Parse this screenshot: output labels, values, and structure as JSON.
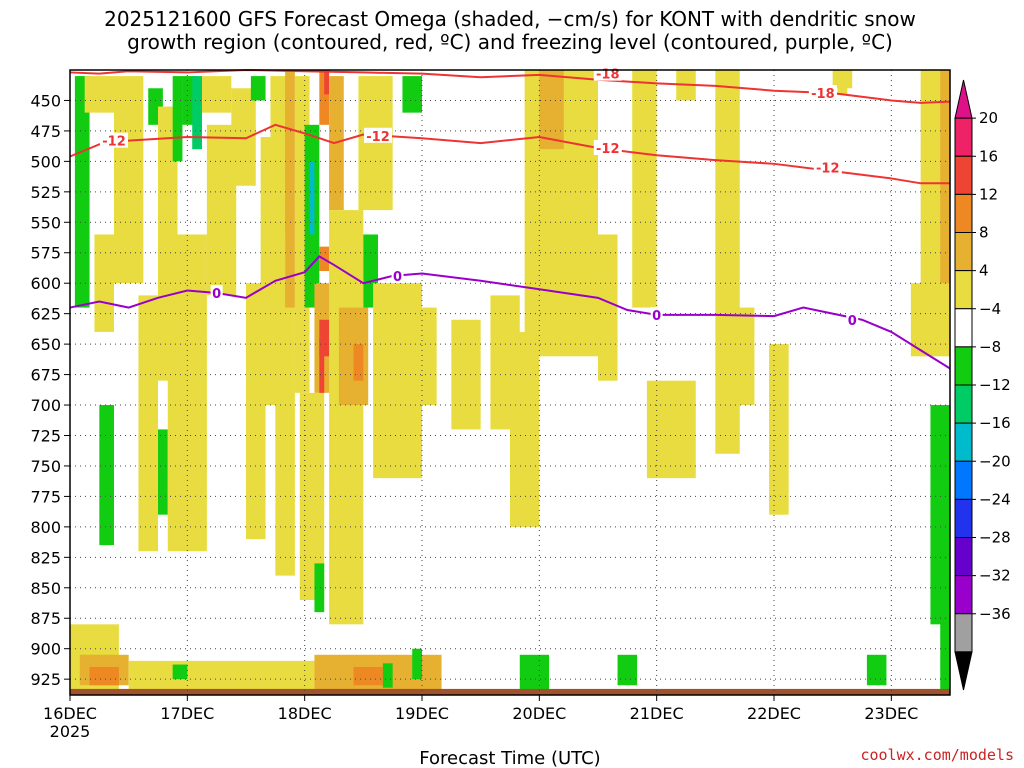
{
  "chart_data": {
    "type": "heatmap",
    "title_lines": [
      "2025121600 GFS Forecast Omega (shaded, −cm/s) for KONT with dendritic snow",
      "growth region (contoured, red, ºC) and freezing level (contoured, purple, ºC)"
    ],
    "xlabel": "Forecast Time (UTC)",
    "ylabel": "",
    "x_ticks": [
      "16DEC",
      "17DEC",
      "18DEC",
      "19DEC",
      "20DEC",
      "21DEC",
      "22DEC",
      "23DEC"
    ],
    "x_tick_values": [
      0,
      24,
      48,
      72,
      96,
      120,
      144,
      168
    ],
    "x_year_label": "2025",
    "xlim": [
      0,
      180
    ],
    "y_ticks": [
      450,
      475,
      500,
      525,
      550,
      575,
      600,
      625,
      650,
      675,
      700,
      725,
      750,
      775,
      800,
      825,
      850,
      875,
      900,
      925
    ],
    "ylim": [
      938,
      425
    ],
    "grid": true,
    "colorbar": {
      "levels": [
        -36,
        -32,
        -28,
        -24,
        -20,
        -16,
        -12,
        -8,
        -4,
        4,
        8,
        12,
        16,
        20
      ],
      "labels": [
        "20",
        "16",
        "12",
        "8",
        "4",
        "−4",
        "−8",
        "−12",
        "−16",
        "−20",
        "−24",
        "−28",
        "−32",
        "−36"
      ],
      "colors": [
        "#000000",
        "#a0a0a0",
        "#9900cc",
        "#6600cc",
        "#2233ee",
        "#0077ff",
        "#00bbcc",
        "#00cc66",
        "#11cc11",
        "#ffffff",
        "#e8dc40",
        "#e6b030",
        "#ee8822",
        "#ee4433",
        "#ee2266",
        "#dd1188"
      ],
      "position": "right"
    },
    "contours": [
      {
        "label": "-18",
        "color": "#ee3333",
        "x": [
          0,
          6,
          12,
          24,
          36,
          48,
          60,
          72,
          84,
          96,
          108,
          120,
          132,
          144,
          156,
          168,
          174,
          180
        ],
        "y": [
          427,
          428,
          426,
          427,
          425,
          426,
          427,
          428,
          431,
          429,
          433,
          436,
          438,
          442,
          444,
          450,
          452,
          451
        ]
      },
      {
        "label": "-12",
        "color": "#ee3333",
        "x": [
          0,
          6,
          12,
          24,
          36,
          42,
          48,
          54,
          60,
          72,
          84,
          96,
          108,
          120,
          132,
          144,
          156,
          168,
          174,
          180
        ],
        "y": [
          496,
          486,
          483,
          480,
          481,
          470,
          477,
          485,
          478,
          481,
          485,
          480,
          489,
          495,
          499,
          502,
          508,
          514,
          518,
          518
        ]
      },
      {
        "label": "0",
        "color": "#9900cc",
        "x": [
          0,
          6,
          12,
          18,
          24,
          30,
          36,
          42,
          48,
          51,
          54,
          60,
          66,
          72,
          84,
          96,
          108,
          114,
          120,
          132,
          144,
          150,
          156,
          162,
          168,
          174,
          180
        ],
        "y": [
          620,
          615,
          620,
          612,
          606,
          608,
          612,
          598,
          591,
          578,
          585,
          600,
          594,
          592,
          598,
          605,
          612,
          622,
          626,
          626,
          627,
          620,
          625,
          630,
          640,
          655,
          670
        ]
      }
    ],
    "contour_label_points": [
      {
        "label": "-18",
        "x": 110,
        "y": 428
      },
      {
        "label": "-18",
        "x": 154,
        "y": 444
      },
      {
        "label": "-12",
        "x": 9,
        "y": 483
      },
      {
        "label": "-12",
        "x": 63,
        "y": 479
      },
      {
        "label": "-12",
        "x": 110,
        "y": 489
      },
      {
        "label": "-12",
        "x": 155,
        "y": 505
      },
      {
        "label": "0",
        "x": 30,
        "y": 608
      },
      {
        "label": "0",
        "x": 67,
        "y": 594
      },
      {
        "label": "0",
        "x": 120,
        "y": 626
      },
      {
        "label": "0",
        "x": 160,
        "y": 630
      }
    ],
    "omega_cells": [
      {
        "x": [
          0,
          180
        ],
        "p": [
          425,
          938
        ],
        "v": 0
      },
      {
        "x": [
          1,
          4
        ],
        "p": [
          430,
          620
        ],
        "v": -6
      },
      {
        "x": [
          3,
          9
        ],
        "p": [
          430,
          460
        ],
        "v": 6
      },
      {
        "x": [
          5,
          9
        ],
        "p": [
          560,
          640
        ],
        "v": 5
      },
      {
        "x": [
          6,
          9
        ],
        "p": [
          700,
          815
        ],
        "v": -6
      },
      {
        "x": [
          9,
          15
        ],
        "p": [
          430,
          600
        ],
        "v": 5
      },
      {
        "x": [
          14,
          18
        ],
        "p": [
          610,
          820
        ],
        "v": 5
      },
      {
        "x": [
          16,
          19
        ],
        "p": [
          440,
          470
        ],
        "v": -6
      },
      {
        "x": [
          18,
          22
        ],
        "p": [
          455,
          680
        ],
        "v": 5
      },
      {
        "x": [
          18,
          20
        ],
        "p": [
          720,
          790
        ],
        "v": -6
      },
      {
        "x": [
          20,
          28
        ],
        "p": [
          560,
          820
        ],
        "v": 5
      },
      {
        "x": [
          21,
          23
        ],
        "p": [
          430,
          500
        ],
        "v": -6
      },
      {
        "x": [
          23,
          26
        ],
        "p": [
          430,
          470
        ],
        "v": -6
      },
      {
        "x": [
          25,
          27
        ],
        "p": [
          430,
          490
        ],
        "v": -10
      },
      {
        "x": [
          27,
          33
        ],
        "p": [
          430,
          460
        ],
        "v": 5
      },
      {
        "x": [
          28,
          34
        ],
        "p": [
          470,
          610
        ],
        "v": 5
      },
      {
        "x": [
          33,
          38
        ],
        "p": [
          440,
          520
        ],
        "v": 5
      },
      {
        "x": [
          36,
          40
        ],
        "p": [
          600,
          810
        ],
        "v": 5
      },
      {
        "x": [
          37,
          40
        ],
        "p": [
          430,
          450
        ],
        "v": -6
      },
      {
        "x": [
          39,
          44
        ],
        "p": [
          480,
          700
        ],
        "v": 5
      },
      {
        "x": [
          41,
          45
        ],
        "p": [
          430,
          560
        ],
        "v": 5
      },
      {
        "x": [
          42,
          46
        ],
        "p": [
          600,
          840
        ],
        "v": 5
      },
      {
        "x": [
          44,
          46
        ],
        "p": [
          425,
          620
        ],
        "v": 9
      },
      {
        "x": [
          46,
          49
        ],
        "p": [
          430,
          690
        ],
        "v": 6
      },
      {
        "x": [
          47,
          52
        ],
        "p": [
          690,
          860
        ],
        "v": 5
      },
      {
        "x": [
          48,
          51
        ],
        "p": [
          470,
          620
        ],
        "v": -6
      },
      {
        "x": [
          49,
          50
        ],
        "p": [
          500,
          560
        ],
        "v": -14
      },
      {
        "x": [
          51,
          53
        ],
        "p": [
          425,
          470
        ],
        "v": 14
      },
      {
        "x": [
          52,
          53
        ],
        "p": [
          425,
          445
        ],
        "v": 18
      },
      {
        "x": [
          51,
          53
        ],
        "p": [
          570,
          590
        ],
        "v": 13
      },
      {
        "x": [
          50,
          55
        ],
        "p": [
          600,
          690
        ],
        "v": 10
      },
      {
        "x": [
          51,
          53
        ],
        "p": [
          630,
          660
        ],
        "v": 16
      },
      {
        "x": [
          51,
          52
        ],
        "p": [
          645,
          690
        ],
        "v": 19
      },
      {
        "x": [
          50,
          52
        ],
        "p": [
          830,
          870
        ],
        "v": -6
      },
      {
        "x": [
          53,
          56
        ],
        "p": [
          430,
          540
        ],
        "v": 10
      },
      {
        "x": [
          53,
          60
        ],
        "p": [
          540,
          880
        ],
        "v": 5
      },
      {
        "x": [
          55,
          61
        ],
        "p": [
          620,
          700
        ],
        "v": 10
      },
      {
        "x": [
          58,
          60
        ],
        "p": [
          650,
          680
        ],
        "v": 15
      },
      {
        "x": [
          60,
          63
        ],
        "p": [
          560,
          620
        ],
        "v": -6
      },
      {
        "x": [
          59,
          66
        ],
        "p": [
          430,
          540
        ],
        "v": 5
      },
      {
        "x": [
          62,
          72
        ],
        "p": [
          600,
          760
        ],
        "v": 5
      },
      {
        "x": [
          68,
          72
        ],
        "p": [
          430,
          460
        ],
        "v": -6
      },
      {
        "x": [
          70,
          75
        ],
        "p": [
          620,
          700
        ],
        "v": 5
      },
      {
        "x": [
          78,
          84
        ],
        "p": [
          630,
          720
        ],
        "v": 5
      },
      {
        "x": [
          86,
          92
        ],
        "p": [
          610,
          720
        ],
        "v": 5
      },
      {
        "x": [
          90,
          96
        ],
        "p": [
          640,
          800
        ],
        "v": 5
      },
      {
        "x": [
          93,
          108
        ],
        "p": [
          425,
          660
        ],
        "v": 5
      },
      {
        "x": [
          96,
          101
        ],
        "p": [
          425,
          490
        ],
        "v": 9
      },
      {
        "x": [
          108,
          112
        ],
        "p": [
          560,
          680
        ],
        "v": 5
      },
      {
        "x": [
          115,
          120
        ],
        "p": [
          425,
          620
        ],
        "v": 5
      },
      {
        "x": [
          118,
          128
        ],
        "p": [
          680,
          760
        ],
        "v": 5
      },
      {
        "x": [
          124,
          128
        ],
        "p": [
          425,
          450
        ],
        "v": 5
      },
      {
        "x": [
          132,
          137
        ],
        "p": [
          425,
          740
        ],
        "v": 5
      },
      {
        "x": [
          135,
          140
        ],
        "p": [
          620,
          700
        ],
        "v": 5
      },
      {
        "x": [
          143,
          147
        ],
        "p": [
          650,
          790
        ],
        "v": 5
      },
      {
        "x": [
          156,
          160
        ],
        "p": [
          425,
          440
        ],
        "v": 5
      },
      {
        "x": [
          157,
          159
        ],
        "p": [
          425,
          445
        ],
        "v": 5
      },
      {
        "x": [
          172,
          175
        ],
        "p": [
          600,
          660
        ],
        "v": 5
      },
      {
        "x": [
          174,
          180
        ],
        "p": [
          425,
          660
        ],
        "v": 5
      },
      {
        "x": [
          178,
          180
        ],
        "p": [
          425,
          600
        ],
        "v": 10
      },
      {
        "x": [
          176,
          180
        ],
        "p": [
          700,
          880
        ],
        "v": -6
      },
      {
        "x": [
          178,
          180
        ],
        "p": [
          840,
          940
        ],
        "v": -6
      },
      {
        "x": [
          0,
          10
        ],
        "p": [
          880,
          938
        ],
        "v": 5
      },
      {
        "x": [
          2,
          12
        ],
        "p": [
          905,
          930
        ],
        "v": 9
      },
      {
        "x": [
          4,
          10
        ],
        "p": [
          915,
          930
        ],
        "v": 13
      },
      {
        "x": [
          12,
          50
        ],
        "p": [
          910,
          938
        ],
        "v": 5
      },
      {
        "x": [
          21,
          24
        ],
        "p": [
          913,
          925
        ],
        "v": -6
      },
      {
        "x": [
          50,
          76
        ],
        "p": [
          905,
          935
        ],
        "v": 9
      },
      {
        "x": [
          58,
          64
        ],
        "p": [
          915,
          930
        ],
        "v": 14
      },
      {
        "x": [
          64,
          66
        ],
        "p": [
          912,
          932
        ],
        "v": -6
      },
      {
        "x": [
          70,
          72
        ],
        "p": [
          900,
          925
        ],
        "v": -6
      },
      {
        "x": [
          92,
          98
        ],
        "p": [
          905,
          935
        ],
        "v": -6
      },
      {
        "x": [
          112,
          116
        ],
        "p": [
          905,
          930
        ],
        "v": -6
      },
      {
        "x": [
          163,
          167
        ],
        "p": [
          905,
          930
        ],
        "v": -6
      },
      {
        "x": [
          0,
          180
        ],
        "p": [
          933,
          938
        ],
        "v": 0
      }
    ],
    "credit": "coolwx.com/models"
  }
}
